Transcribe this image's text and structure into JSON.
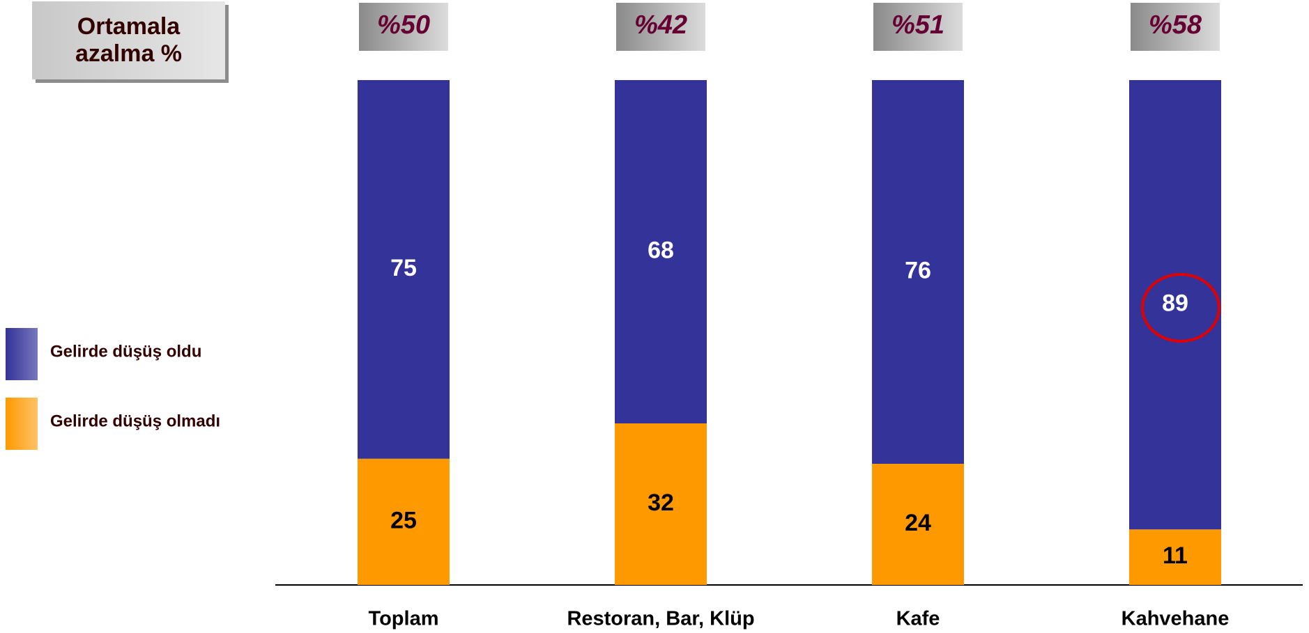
{
  "chart_data": {
    "type": "stacked_bar",
    "title": "Ortamala azalma %",
    "categories": [
      "Toplam",
      "Restoran, Bar, Klüp",
      "Kafe",
      "Kahvehane"
    ],
    "annotations": [
      "%50",
      "%42",
      "%51",
      "%58"
    ],
    "series": [
      {
        "name": "Gelirde düşüş oldu",
        "color": "#333399",
        "values": [
          75,
          68,
          76,
          89
        ]
      },
      {
        "name": "Gelirde düşüş olmadı",
        "color": "#ff9900",
        "values": [
          25,
          32,
          24,
          11
        ]
      }
    ],
    "ylim": [
      0,
      100
    ],
    "legend": "left"
  }
}
